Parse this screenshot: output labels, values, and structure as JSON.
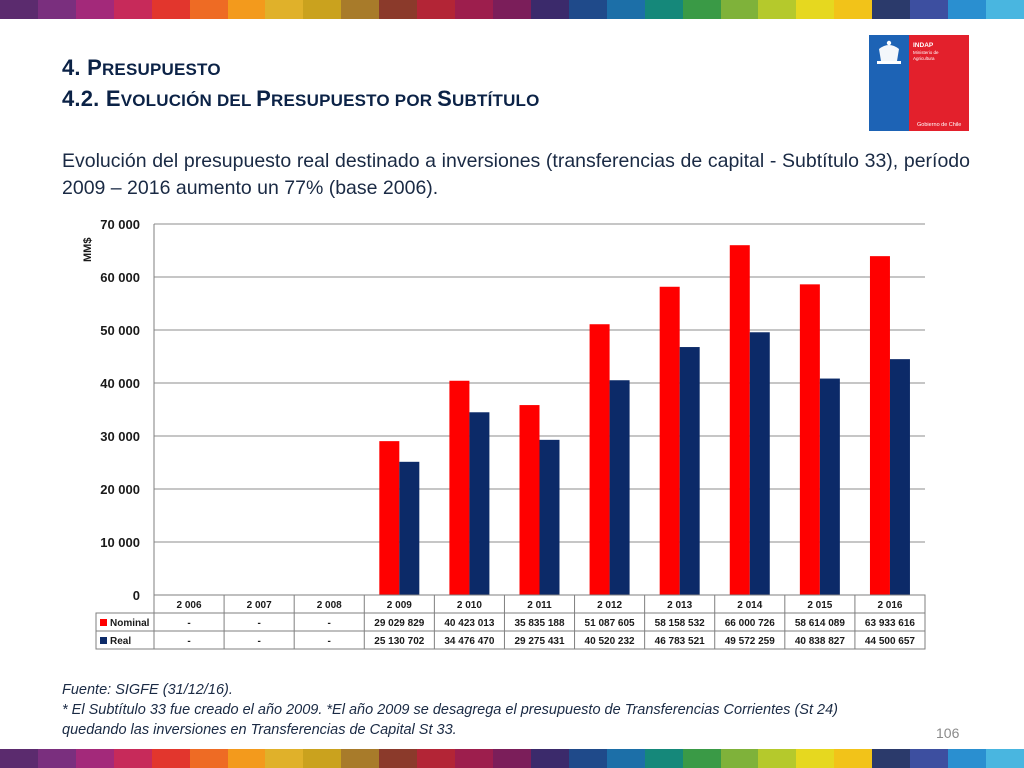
{
  "header": {
    "title_line1_num": "4. ",
    "title_line1_cap": "P",
    "title_line1_rest": "resupuesto",
    "title_line2_num": "4.2. ",
    "title_line2_words": [
      {
        "cap": "E",
        "rest": "volución "
      },
      {
        "cap": "",
        "rest": "del "
      },
      {
        "cap": "P",
        "rest": "resupuesto "
      },
      {
        "cap": "",
        "rest": "por "
      },
      {
        "cap": "S",
        "rest": "ubtítulo"
      }
    ]
  },
  "logo": {
    "line1": "INDAP",
    "line2": "Ministerio de",
    "line3": "Agricultura",
    "bottom": "Gobierno de Chile",
    "colors": {
      "blue": "#1d63b5",
      "red": "#e3202c"
    }
  },
  "subtitle": "Evolución del presupuesto real destinado a inversiones (transferencias de capital - Subtítulo 33), período 2009 – 2016 aumento un 77% (base 2006).",
  "chart_data": {
    "type": "bar",
    "ylabel": "MM$",
    "ylim": [
      0,
      70000
    ],
    "yticks": [
      0,
      10000,
      20000,
      30000,
      40000,
      50000,
      60000,
      70000
    ],
    "ytick_labels": [
      "0",
      "10 000",
      "20 000",
      "30 000",
      "40 000",
      "50 000",
      "60 000",
      "70 000"
    ],
    "grid": true,
    "legend_placement": "data-table",
    "categories": [
      "2 006",
      "2 007",
      "2 008",
      "2 009",
      "2 010",
      "2 011",
      "2 012",
      "2 013",
      "2 014",
      "2 015",
      "2 016"
    ],
    "series": [
      {
        "name": "Nominal",
        "color": "#ff0000",
        "values": [
          null,
          null,
          null,
          29029.829,
          40423.013,
          35835.188,
          51087.605,
          58158.532,
          66000.726,
          58614.089,
          63933.616
        ],
        "labels": [
          "-",
          "-",
          "-",
          "29 029 829",
          "40 423 013",
          "35 835 188",
          "51 087 605",
          "58 158 532",
          "66 000 726",
          "58 614 089",
          "63 933 616"
        ]
      },
      {
        "name": "Real",
        "color": "#0c2a68",
        "values": [
          null,
          null,
          null,
          25130.702,
          34476.47,
          29275.431,
          40520.232,
          46783.521,
          49572.259,
          40838.827,
          44500.657
        ],
        "labels": [
          "-",
          "-",
          "-",
          "25 130 702",
          "34 476 470",
          "29 275 431",
          "40 520 232",
          "46 783 521",
          "49 572 259",
          "40 838 827",
          "44 500 657"
        ]
      }
    ]
  },
  "footer": {
    "source": "Fuente: SIGFE (31/12/16).",
    "note_line1": "* El Subtítulo 33 fue creado el año 2009. *El año 2009 se desagrega el presupuesto de Transferencias Corrientes (St 24)",
    "note_line2": "quedando las inversiones en Transferencias de Capital St 33."
  },
  "page_number": "106",
  "stripe_colors": [
    "#5b2b6e",
    "#7a2f7e",
    "#a3297a",
    "#c72a5a",
    "#e2362d",
    "#ee6b24",
    "#f39a1c",
    "#e0b12a",
    "#caa21e",
    "#a87b2a",
    "#8b3a2b",
    "#b32536",
    "#9d1e4d",
    "#7b1e5a",
    "#3b2a6b",
    "#1f4a8a",
    "#1c6fa8",
    "#15887a",
    "#3a9a46",
    "#7fb23a",
    "#b5c92c",
    "#e6d81f",
    "#f2c319",
    "#2b3a6b",
    "#3d4fa0",
    "#2a8fd0",
    "#49b6e0"
  ]
}
